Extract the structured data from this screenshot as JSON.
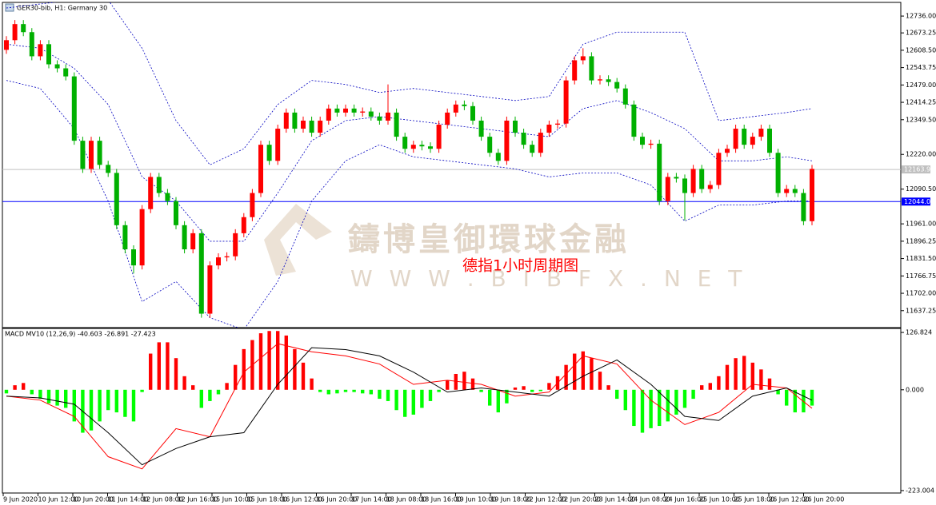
{
  "chart_data": [
    {
      "type": "candlestick",
      "title": "GER30-bib, H1: Germany 30",
      "open": [
        12610,
        12646,
        12706,
        12676,
        12586,
        12631,
        12556,
        12541,
        12511,
        12271,
        12166,
        12271,
        12181,
        12151,
        11956,
        11866,
        11806,
        12016,
        12136,
        12076,
        12046,
        11956,
        11866,
        11926,
        11626,
        11806,
        11836,
        11840,
        11926,
        11986,
        12076,
        12256,
        12196,
        12316,
        12376,
        12316,
        12346,
        12301,
        12346,
        12391,
        12376,
        12391,
        12376,
        12380,
        12361,
        12346,
        12376,
        12286,
        12241,
        12256,
        12250,
        12241,
        12331,
        12376,
        12406,
        12400,
        12346,
        12286,
        12226,
        12196,
        12346,
        12301,
        12256,
        12226,
        12301,
        12331,
        12335,
        12496,
        12571,
        12586,
        12496,
        12500,
        12490,
        12466,
        12406,
        12286,
        12256,
        12260,
        12046,
        12136,
        12130,
        12076,
        12166,
        12091,
        12106,
        12226,
        12241,
        12316,
        12256,
        12286,
        12316,
        12226,
        12076,
        12091,
        12076,
        11971
      ],
      "high": [
        12661,
        12721,
        12721,
        12691,
        12646,
        12646,
        12571,
        12556,
        12526,
        12286,
        12286,
        12286,
        12196,
        12166,
        11971,
        11881,
        12031,
        12151,
        12151,
        12091,
        12061,
        11971,
        11941,
        11941,
        11821,
        11851,
        11855,
        11941,
        12001,
        12091,
        12271,
        12271,
        12331,
        12391,
        12391,
        12361,
        12361,
        12361,
        12406,
        12406,
        12406,
        12406,
        12395,
        12395,
        12376,
        12481,
        12391,
        12301,
        12271,
        12271,
        12265,
        12346,
        12391,
        12421,
        12421,
        12415,
        12361,
        12301,
        12241,
        12361,
        12361,
        12316,
        12271,
        12316,
        12346,
        12350,
        12511,
        12586,
        12616,
        12601,
        12515,
        12515,
        12505,
        12481,
        12421,
        12301,
        12275,
        12275,
        12151,
        12151,
        12145,
        12181,
        12181,
        12121,
        12241,
        12256,
        12331,
        12331,
        12301,
        12331,
        12331,
        12241,
        12106,
        12106,
        12091,
        12181
      ],
      "low": [
        12595,
        12631,
        12661,
        12571,
        12571,
        12541,
        12526,
        12496,
        12256,
        12151,
        12151,
        12166,
        12136,
        11941,
        11851,
        11776,
        11791,
        12001,
        12061,
        12031,
        11941,
        11851,
        11851,
        11611,
        11611,
        11791,
        11821,
        11825,
        11911,
        11971,
        12061,
        12181,
        12181,
        12301,
        12301,
        12301,
        12286,
        12286,
        12331,
        12361,
        12361,
        12361,
        12361,
        12346,
        12331,
        12331,
        12271,
        12226,
        12226,
        12235,
        12226,
        12226,
        12316,
        12361,
        12385,
        12331,
        12271,
        12211,
        12181,
        12181,
        12286,
        12241,
        12211,
        12211,
        12286,
        12316,
        12320,
        12481,
        12556,
        12481,
        12481,
        12475,
        12451,
        12391,
        12271,
        12241,
        12241,
        12031,
        12031,
        12115,
        11974,
        12061,
        12076,
        12076,
        12091,
        12211,
        12226,
        12241,
        12241,
        12271,
        12211,
        12061,
        12061,
        12061,
        11956,
        11956
      ],
      "close": [
        12646,
        12706,
        12676,
        12586,
        12631,
        12556,
        12541,
        12511,
        12271,
        12166,
        12271,
        12181,
        12151,
        11956,
        11866,
        11806,
        12016,
        12136,
        12076,
        12046,
        11956,
        11866,
        11926,
        11626,
        11806,
        11836,
        11840,
        11926,
        11986,
        12076,
        12256,
        12196,
        12316,
        12376,
        12316,
        12346,
        12301,
        12346,
        12391,
        12376,
        12391,
        12376,
        12380,
        12361,
        12346,
        12376,
        12286,
        12241,
        12256,
        12250,
        12241,
        12331,
        12376,
        12406,
        12400,
        12346,
        12286,
        12226,
        12196,
        12346,
        12301,
        12256,
        12226,
        12301,
        12331,
        12335,
        12496,
        12571,
        12586,
        12496,
        12500,
        12490,
        12466,
        12406,
        12286,
        12256,
        12260,
        12046,
        12136,
        12130,
        12076,
        12166,
        12091,
        12106,
        12226,
        12241,
        12316,
        12256,
        12286,
        12316,
        12226,
        12076,
        12091,
        12076,
        11971,
        12166
      ],
      "up_color": "#ff0000",
      "down_color": "#00b000",
      "band_x": [
        0,
        4,
        8,
        12,
        16,
        20,
        24,
        28,
        32,
        36,
        40,
        44,
        48,
        52,
        56,
        60,
        64,
        68,
        72,
        76,
        80,
        84,
        88,
        92,
        95
      ],
      "bands": [
        {
          "color": "#0000c0",
          "values": [
            12766,
            12781,
            12796,
            12796,
            12616,
            12346,
            12181,
            12241,
            12406,
            12496,
            12481,
            12451,
            12466,
            12451,
            12436,
            12421,
            12436,
            12631,
            12676,
            12676,
            12676,
            12346,
            12361,
            12376,
            12391
          ]
        },
        {
          "color": "#0000c0",
          "values": [
            12631,
            12616,
            12541,
            12406,
            12136,
            12046,
            11896,
            11896,
            12076,
            12271,
            12346,
            12361,
            12346,
            12331,
            12316,
            12301,
            12286,
            12391,
            12421,
            12376,
            12316,
            12196,
            12196,
            12211,
            12196
          ]
        },
        {
          "color": "#0000c0",
          "values": [
            12496,
            12466,
            12316,
            12046,
            11671,
            11746,
            11611,
            11566,
            11746,
            12046,
            12196,
            12256,
            12211,
            12196,
            12181,
            12166,
            12136,
            12151,
            12151,
            12106,
            11971,
            12031,
            12031,
            12046,
            12046
          ]
        }
      ],
      "hlines": [
        {
          "value": 12163.9,
          "label": "12163.9",
          "color": "#c0c0c0"
        },
        {
          "value": 12044.01,
          "label": "12044.01",
          "color": "#0000ff"
        }
      ],
      "ylim": [
        11574,
        12781
      ],
      "yticks": [
        {
          "value": 12736,
          "label": "12736.00"
        },
        {
          "value": 12673.25,
          "label": "12673.25"
        },
        {
          "value": 12608.5,
          "label": "12608.50"
        },
        {
          "value": 12543.75,
          "label": "12543.75"
        },
        {
          "value": 12479,
          "label": "12479.00"
        },
        {
          "value": 12414.25,
          "label": "12414.25"
        },
        {
          "value": 12349.5,
          "label": "12349.50"
        },
        {
          "value": 12220,
          "label": "12220.00"
        },
        {
          "value": 12090.5,
          "label": "12090.50"
        },
        {
          "value": 11961,
          "label": "11961.00"
        },
        {
          "value": 11896.25,
          "label": "11896.25"
        },
        {
          "value": 11831.5,
          "label": "11831.50"
        },
        {
          "value": 11766.75,
          "label": "11766.75"
        },
        {
          "value": 11702,
          "label": "11702.00"
        },
        {
          "value": 11637.25,
          "label": "11637.25"
        }
      ],
      "x_labels": [
        "9 Jun 2020",
        "10 Jun 12:00",
        "10 Jun 20:00",
        "11 Jun 14:00",
        "12 Jun 08:00",
        "12 Jun 16:00",
        "15 Jun 10:00",
        "15 Jun 18:00",
        "16 Jun 12:00",
        "16 Jun 20:00",
        "17 Jun 14:00",
        "18 Jun 08:00",
        "18 Jun 16:00",
        "19 Jun 10:00",
        "19 Jun 18:00",
        "22 Jun 12:00",
        "22 Jun 20:00",
        "23 Jun 14:00",
        "24 Jun 08:00",
        "24 Jun 16:00",
        "25 Jun 10:00",
        "25 Jun 18:00",
        "26 Jun 12:00",
        "26 Jun 20:00"
      ]
    },
    {
      "type": "macd",
      "title": "MACD MV10 (12,26,9) -40.603 -26.891 -27.423",
      "values": [
        -8,
        10,
        15,
        -10,
        -20,
        -30,
        -35,
        -40,
        -70,
        -95,
        -90,
        -70,
        -45,
        -50,
        -60,
        -70,
        -5,
        80,
        105,
        105,
        70,
        30,
        10,
        -40,
        -25,
        -10,
        15,
        55,
        90,
        110,
        125,
        130,
        130,
        120,
        90,
        60,
        25,
        -5,
        -10,
        -8,
        -5,
        -5,
        -8,
        -10,
        -20,
        -25,
        -45,
        -60,
        -55,
        -40,
        -25,
        -5,
        20,
        35,
        40,
        25,
        -5,
        -35,
        -50,
        -30,
        5,
        8,
        -5,
        -3,
        15,
        30,
        55,
        80,
        85,
        70,
        40,
        10,
        -20,
        -45,
        -80,
        -95,
        -85,
        -80,
        -70,
        -55,
        -40,
        -20,
        10,
        15,
        30,
        55,
        70,
        75,
        60,
        45,
        25,
        -10,
        -35,
        -50,
        -50,
        -35
      ],
      "positive_color": "#ff0000",
      "negative_color": "#00ff00",
      "line_x": [
        0,
        4,
        8,
        12,
        16,
        20,
        24,
        28,
        32,
        36,
        40,
        44,
        48,
        52,
        56,
        60,
        64,
        68,
        72,
        76,
        80,
        84,
        88,
        92,
        95
      ],
      "lines": [
        {
          "color": "#ff0000",
          "values": [
            -14,
            -23,
            -59,
            -148,
            -175,
            -86,
            -104,
            39,
            102,
            84,
            75,
            57,
            12,
            21,
            12,
            -14,
            -5,
            75,
            57,
            -23,
            -77,
            -50,
            12,
            4,
            -41
          ]
        },
        {
          "color": "#000000",
          "values": [
            -14,
            -18,
            -32,
            -95,
            -166,
            -130,
            -104,
            -95,
            12,
            93,
            89,
            75,
            39,
            -5,
            4,
            -5,
            -14,
            30,
            66,
            12,
            -59,
            -68,
            -14,
            4,
            -23
          ]
        }
      ],
      "ylim": [
        -228.4,
        135.75
      ],
      "yticks": [
        126.824,
        {
          "value": 0,
          "label": "0.000"
        },
        -223.004
      ]
    }
  ],
  "watermark": {
    "brand": "鑄博皇御環球金融",
    "url": "W W W . B I B F X . N E T"
  },
  "caption": "德指1小时周期图"
}
